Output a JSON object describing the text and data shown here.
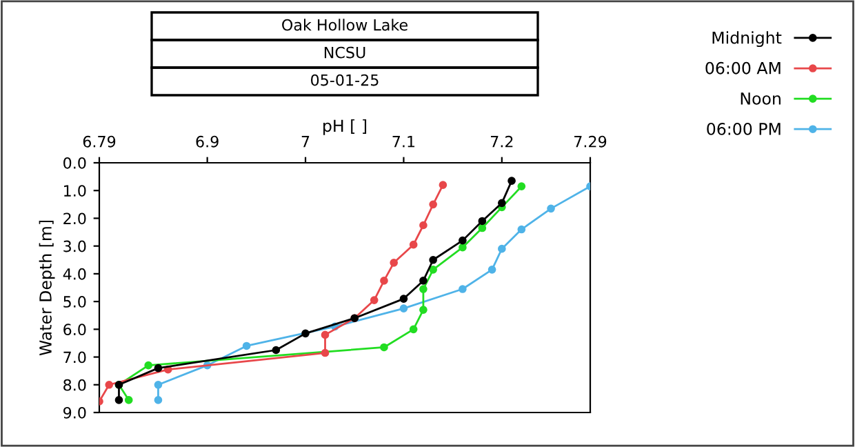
{
  "chart_data": {
    "type": "line",
    "title": "Oak Hollow Lake",
    "subtitle": "NCSU",
    "annotations": [
      "05-01-25"
    ],
    "xlabel": "pH [ ]",
    "ylabel": "Water Depth [m]",
    "xlim": [
      6.79,
      7.29
    ],
    "xticks": [
      6.79,
      6.9,
      7,
      7.1,
      7.2,
      7.29
    ],
    "ylim": [
      9,
      0
    ],
    "yticks": [
      {
        "value": 0,
        "label": "0.0"
      },
      {
        "value": 1,
        "label": "1.0"
      },
      {
        "value": 2,
        "label": "2.0"
      },
      {
        "value": 3,
        "label": "3.0"
      },
      {
        "value": 4,
        "label": "4.0"
      },
      {
        "value": 5,
        "label": "5.0"
      },
      {
        "value": 6,
        "label": "6.0"
      },
      {
        "value": 7,
        "label": "7.0"
      },
      {
        "value": 8,
        "label": "8.0"
      },
      {
        "value": 9,
        "label": "9.0"
      }
    ],
    "marker": "circle",
    "line_style": "solid",
    "legend": "top right",
    "grid": false,
    "series": [
      {
        "name": "Midnight",
        "color": "#000000",
        "x": [
          7.21,
          7.2,
          7.18,
          7.16,
          7.13,
          7.12,
          7.1,
          7.05,
          7.0,
          6.97,
          6.85,
          6.81,
          6.81
        ],
        "values": [
          0.65,
          1.45,
          2.1,
          2.8,
          3.5,
          4.25,
          4.9,
          5.6,
          6.15,
          6.75,
          7.4,
          8.0,
          8.55
        ]
      },
      {
        "name": "06:00 AM",
        "color": "#e8474a",
        "x": [
          7.14,
          7.13,
          7.12,
          7.11,
          7.09,
          7.08,
          7.07,
          7.05,
          7.02,
          7.02,
          6.86,
          6.8,
          6.79
        ],
        "values": [
          0.8,
          1.5,
          2.25,
          2.95,
          3.6,
          4.25,
          4.95,
          5.6,
          6.2,
          6.85,
          7.45,
          8.0,
          8.6
        ]
      },
      {
        "name": "Noon",
        "color": "#22dd22",
        "x": [
          7.22,
          7.2,
          7.18,
          7.16,
          7.13,
          7.12,
          7.12,
          7.11,
          7.08,
          6.84,
          6.81,
          6.82
        ],
        "values": [
          0.85,
          1.6,
          2.35,
          3.05,
          3.85,
          4.55,
          5.3,
          6.0,
          6.65,
          7.3,
          8.0,
          8.55
        ]
      },
      {
        "name": "06:00 PM",
        "color": "#4fb3e8",
        "x": [
          7.29,
          7.25,
          7.22,
          7.2,
          7.19,
          7.16,
          7.1,
          7.03,
          6.94,
          6.9,
          6.85,
          6.85
        ],
        "values": [
          0.85,
          1.65,
          2.4,
          3.1,
          3.85,
          4.55,
          5.25,
          5.9,
          6.6,
          7.3,
          8.0,
          8.55
        ]
      }
    ]
  }
}
